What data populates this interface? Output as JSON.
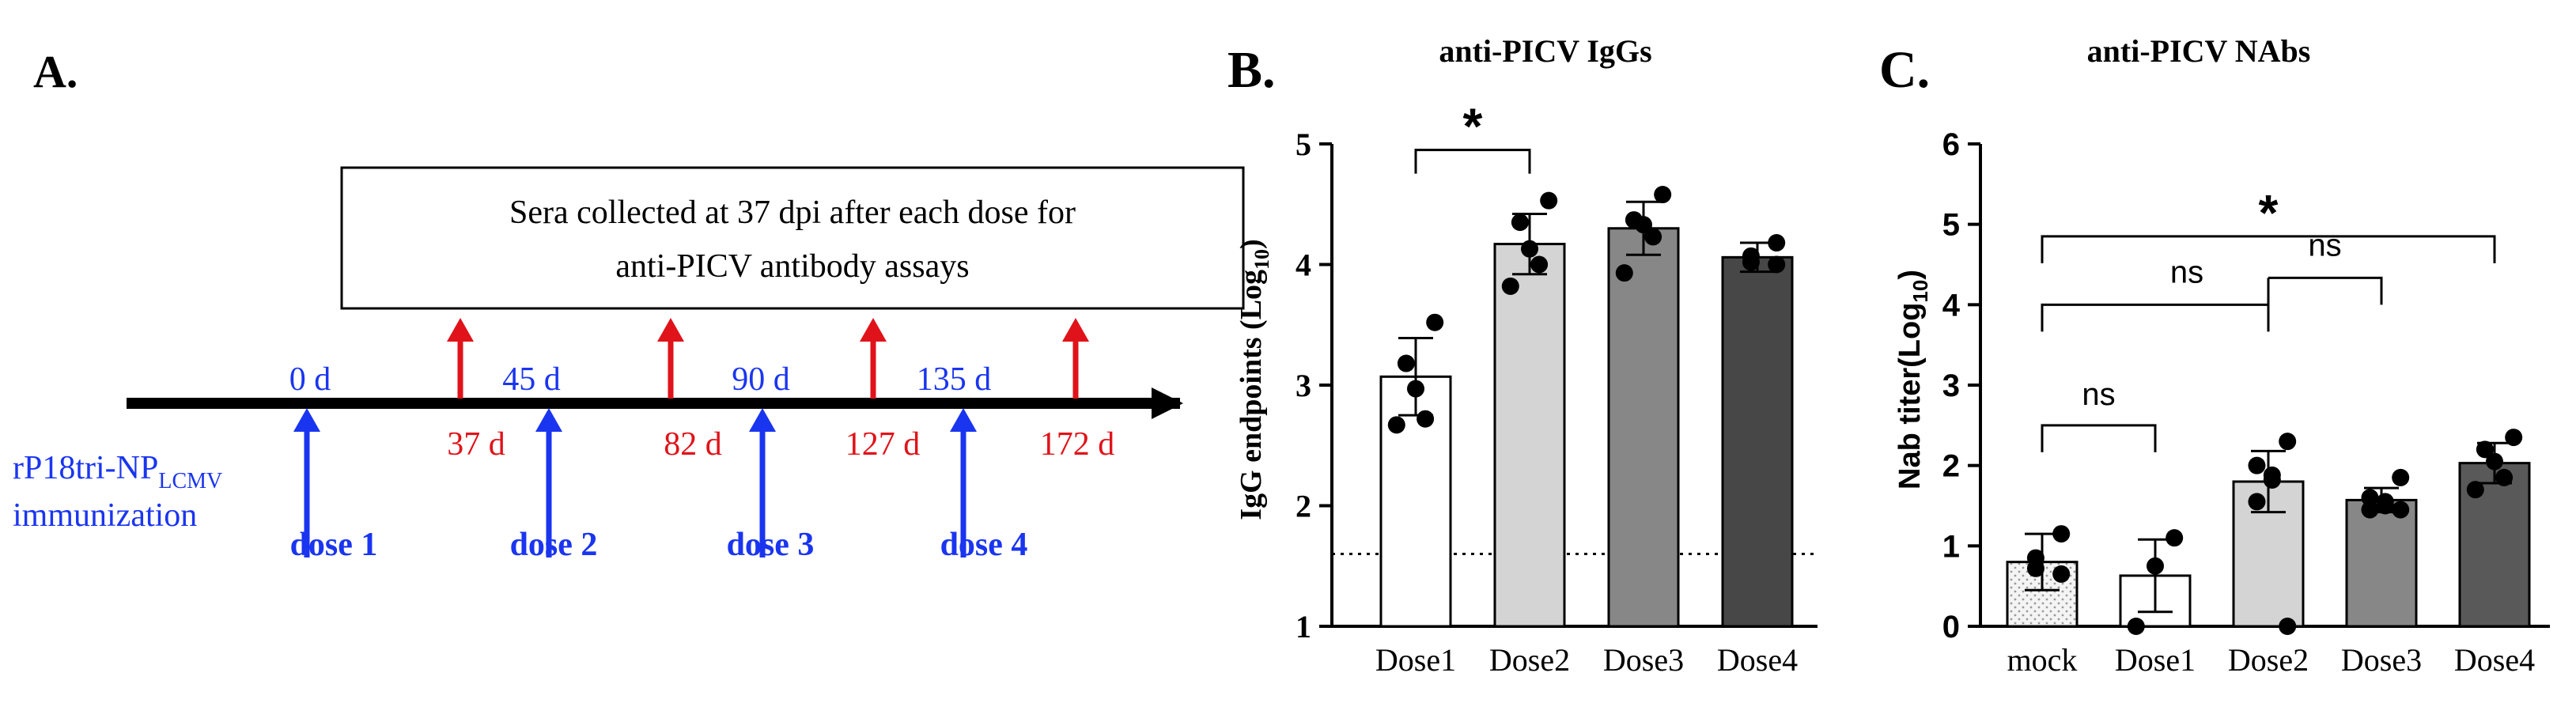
{
  "panel_a": {
    "label": "A.",
    "box_text": [
      "Sera collected at 37 dpi after each dose for",
      "anti-PICV antibody assays"
    ],
    "vaccine_main": "rP18tri-NP",
    "vaccine_sub": "LCMV",
    "vaccine_line2": "immunization",
    "dose_days": [
      "0 d",
      "45 d",
      "90 d",
      "135 d"
    ],
    "dose_labels": [
      "dose 1",
      "dose 2",
      "dose 3",
      "dose 4"
    ],
    "collection_days": [
      "37 d",
      "82 d",
      "127 d",
      "172 d"
    ],
    "colors": {
      "dose": "#1a35f0",
      "collection": "#e0131a",
      "axis": "#000000"
    }
  },
  "chart_data": [
    {
      "panel": "B.",
      "type": "bar",
      "title": "anti-PICV IgGs",
      "ylabel": "IgG endpoints (Log",
      "ylabel_sub": "10",
      "ylabel_end": ")",
      "xlabel": "",
      "ylim": [
        1,
        5
      ],
      "yticks": [
        "1",
        "2",
        "3",
        "4",
        "5"
      ],
      "categories": [
        "Dose1",
        "Dose2",
        "Dose3",
        "Dose4"
      ],
      "values": [
        3.07,
        4.17,
        4.3,
        4.06
      ],
      "error": [
        0.32,
        0.25,
        0.22,
        0.12
      ],
      "points": [
        [
          3.52,
          3.18,
          2.97,
          2.72,
          2.67
        ],
        [
          4.53,
          4.35,
          4.13,
          4.0,
          3.82
        ],
        [
          4.58,
          4.37,
          4.33,
          4.23,
          3.93
        ],
        [
          4.18,
          4.07,
          4.02,
          4.0
        ]
      ],
      "bar_colors": [
        "#ffffff",
        "#d4d4d4",
        "#878787",
        "#474747"
      ],
      "dotted_line": 1.6,
      "significance": [
        {
          "from": "Dose1",
          "to": "Dose2",
          "label": "*",
          "y": 4.95
        }
      ]
    },
    {
      "panel": "C.",
      "type": "bar",
      "title": "anti-PICV NAbs",
      "ylabel": "Nab titer(Log",
      "ylabel_sub": "10",
      "ylabel_end": ")",
      "xlabel": "",
      "ylim": [
        0,
        6
      ],
      "yticks": [
        "0",
        "1",
        "2",
        "3",
        "4",
        "5",
        "6"
      ],
      "categories": [
        "mock",
        "Dose1",
        "Dose2",
        "Dose3",
        "Dose4"
      ],
      "values": [
        0.8,
        0.63,
        1.8,
        1.57,
        2.03
      ],
      "error": [
        0.35,
        0.45,
        0.38,
        0.15,
        0.25
      ],
      "points": [
        [
          1.15,
          0.85,
          0.72,
          0.65
        ],
        [
          1.1,
          0.75,
          0.0
        ],
        [
          2.3,
          2.0,
          1.88,
          1.82,
          1.55,
          0.0
        ],
        [
          1.85,
          1.6,
          1.55,
          1.5,
          1.45,
          1.45
        ],
        [
          2.35,
          2.2,
          2.05,
          1.85,
          1.7
        ]
      ],
      "bar_colors": [
        "#ececec",
        "#ffffff",
        "#d4d4d4",
        "#878787",
        "#595959"
      ],
      "significance": [
        {
          "from": "mock",
          "to": "Dose1",
          "label": "ns",
          "y": 2.5
        },
        {
          "from": "mock",
          "to": "Dose2",
          "label": "ns",
          "y": 4.0,
          "sub_to": "Dose3"
        },
        {
          "from": "mock",
          "to": "Dose4",
          "label": "*",
          "y": 4.85
        }
      ]
    }
  ]
}
